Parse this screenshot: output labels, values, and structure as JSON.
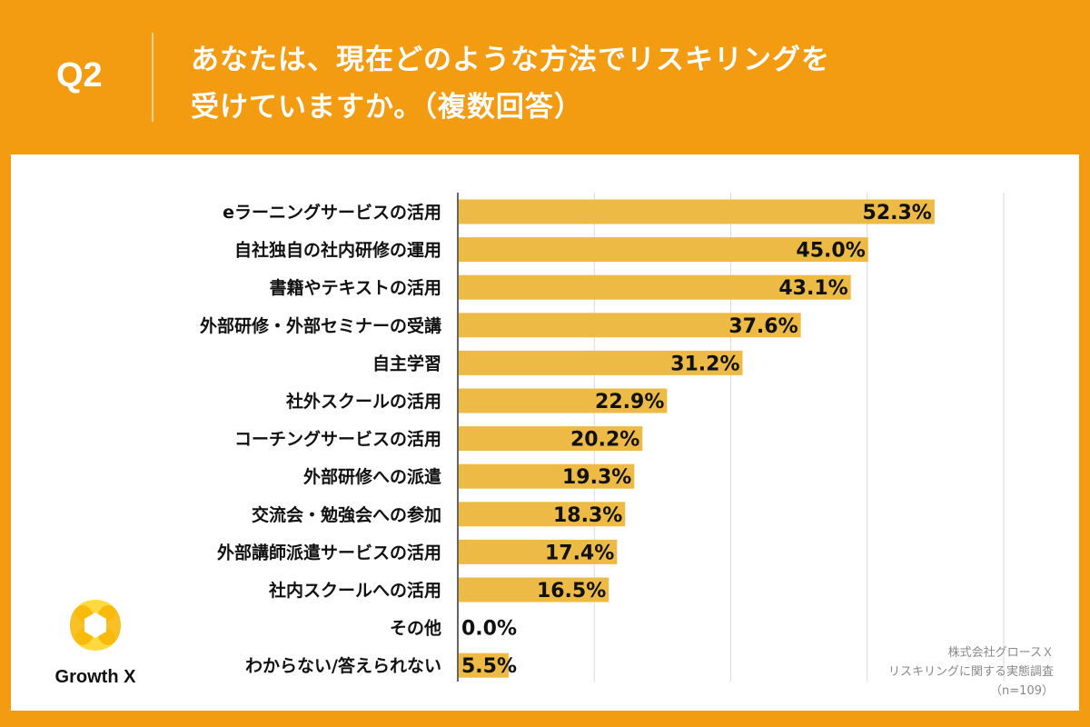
{
  "header": {
    "question": "Q2",
    "title_line1": "あなたは、現在どのような方法でリスキリングを",
    "title_line2": "受けていますか。（複数回答）"
  },
  "colors": {
    "background": "#F39C12",
    "bar": "#EDBB45",
    "grid": "#D9D9D9",
    "axis": "#333333",
    "text": "#111111"
  },
  "chart_data": {
    "type": "bar",
    "orientation": "horizontal",
    "title": "あなたは、現在どのような方法でリスキリングを受けていますか。（複数回答）",
    "categories": [
      "eラーニングサービスの活用",
      "自社独自の社内研修の運用",
      "書籍やテキストの活用",
      "外部研修・外部セミナーの受講",
      "自主学習",
      "社外スクールの活用",
      "コーチングサービスの活用",
      "外部研修への派遣",
      "交流会・勉強会への参加",
      "外部講師派遣サービスの活用",
      "社内スクールへの活用",
      "その他",
      "わからない/答えられない"
    ],
    "values": [
      52.3,
      45.0,
      43.1,
      37.6,
      31.2,
      22.9,
      20.2,
      19.3,
      18.3,
      17.4,
      16.5,
      0.0,
      5.5
    ],
    "value_labels": [
      "52.3%",
      "45.0%",
      "43.1%",
      "37.6%",
      "31.2%",
      "22.9%",
      "20.2%",
      "19.3%",
      "18.3%",
      "17.4%",
      "16.5%",
      "0.0%",
      "5.5%"
    ],
    "xlim": [
      0,
      60
    ],
    "x_gridlines": [
      0,
      15,
      30,
      45,
      60
    ],
    "unit": "%"
  },
  "logo": {
    "name": "Growth X"
  },
  "source": {
    "line1": "株式会社グロースＸ",
    "line2": "リスキリングに関する実態調査",
    "line3": "（n=109）"
  }
}
